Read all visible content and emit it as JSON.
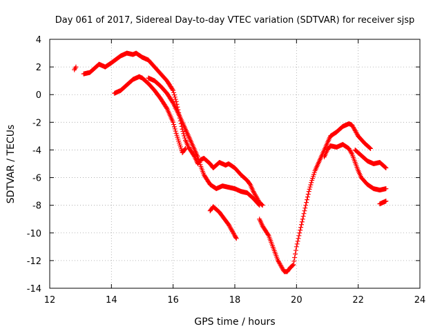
{
  "chart_data": {
    "type": "scatter",
    "title": "Day 061 of 2017, Sidereal Day-to-day VTEC variation (SDTVAR) for receiver sjsp",
    "xlabel": "GPS time / hours",
    "ylabel": "SDTVAR / TECUs",
    "xlim": [
      12,
      24
    ],
    "ylim": [
      -14,
      4
    ],
    "xticks": [
      12,
      14,
      16,
      18,
      20,
      22,
      24
    ],
    "yticks": [
      -14,
      -12,
      -10,
      -8,
      -6,
      -4,
      -2,
      0,
      2,
      4
    ],
    "xtick_labels": [
      "12",
      "14",
      "16",
      "18",
      "20",
      "22",
      "24"
    ],
    "ytick_labels": [
      "-14",
      "-12",
      "-10",
      "-8",
      "-6",
      "-4",
      "-2",
      "0",
      "2",
      "4"
    ],
    "grid": true,
    "marker": "+",
    "series": [
      {
        "name": "arc-1",
        "color": "#ff0000",
        "points": [
          [
            12.8,
            1.8
          ],
          [
            12.85,
            2.0
          ]
        ]
      },
      {
        "name": "arc-2",
        "color": "#ff0000",
        "points": [
          [
            13.1,
            1.5
          ],
          [
            13.3,
            1.6
          ],
          [
            13.5,
            2.0
          ],
          [
            13.6,
            2.2
          ],
          [
            13.8,
            2.0
          ],
          [
            14.0,
            2.3
          ],
          [
            14.3,
            2.8
          ],
          [
            14.5,
            3.0
          ],
          [
            14.7,
            2.9
          ],
          [
            14.8,
            3.0
          ],
          [
            15.0,
            2.7
          ],
          [
            15.2,
            2.5
          ],
          [
            15.4,
            2.0
          ],
          [
            15.6,
            1.5
          ],
          [
            15.8,
            1.0
          ],
          [
            16.0,
            0.3
          ],
          [
            16.1,
            -0.5
          ],
          [
            16.2,
            -1.5
          ],
          [
            16.3,
            -2.5
          ],
          [
            16.4,
            -3.3
          ],
          [
            16.5,
            -3.8
          ],
          [
            16.7,
            -4.5
          ],
          [
            16.8,
            -5.0
          ],
          [
            16.9,
            -4.7
          ],
          [
            17.0,
            -4.6
          ],
          [
            17.2,
            -5.0
          ],
          [
            17.3,
            -5.3
          ],
          [
            17.5,
            -4.9
          ],
          [
            17.7,
            -5.1
          ],
          [
            17.8,
            -5.0
          ],
          [
            18.0,
            -5.3
          ],
          [
            18.2,
            -5.8
          ],
          [
            18.4,
            -6.2
          ],
          [
            18.5,
            -6.5
          ],
          [
            18.6,
            -7.0
          ],
          [
            18.7,
            -7.4
          ],
          [
            18.8,
            -7.8
          ],
          [
            18.9,
            -8.0
          ]
        ]
      },
      {
        "name": "arc-3",
        "color": "#ff0000",
        "points": [
          [
            14.1,
            0.1
          ],
          [
            14.3,
            0.3
          ],
          [
            14.5,
            0.7
          ],
          [
            14.7,
            1.1
          ],
          [
            14.9,
            1.3
          ],
          [
            15.0,
            1.2
          ],
          [
            15.2,
            0.8
          ],
          [
            15.4,
            0.3
          ],
          [
            15.6,
            -0.3
          ],
          [
            15.8,
            -1.0
          ],
          [
            16.0,
            -2.0
          ],
          [
            16.1,
            -2.8
          ],
          [
            16.2,
            -3.5
          ],
          [
            16.3,
            -4.2
          ],
          [
            16.4,
            -3.9
          ]
        ]
      },
      {
        "name": "arc-4",
        "color": "#ff0000",
        "points": [
          [
            15.2,
            1.2
          ],
          [
            15.4,
            1.0
          ],
          [
            15.6,
            0.6
          ],
          [
            15.8,
            0.1
          ],
          [
            16.0,
            -0.6
          ],
          [
            16.2,
            -1.5
          ],
          [
            16.4,
            -2.5
          ],
          [
            16.6,
            -3.5
          ],
          [
            16.8,
            -4.5
          ],
          [
            16.9,
            -5.2
          ],
          [
            17.0,
            -5.8
          ],
          [
            17.2,
            -6.5
          ],
          [
            17.4,
            -6.8
          ],
          [
            17.6,
            -6.6
          ],
          [
            17.8,
            -6.7
          ],
          [
            18.0,
            -6.8
          ],
          [
            18.2,
            -7.0
          ],
          [
            18.4,
            -7.1
          ],
          [
            18.5,
            -7.3
          ],
          [
            18.6,
            -7.5
          ],
          [
            18.8,
            -8.0
          ]
        ]
      },
      {
        "name": "arc-5",
        "color": "#ff0000",
        "points": [
          [
            17.2,
            -8.4
          ],
          [
            17.3,
            -8.1
          ],
          [
            17.5,
            -8.5
          ],
          [
            17.6,
            -8.8
          ],
          [
            17.8,
            -9.4
          ],
          [
            17.9,
            -9.8
          ],
          [
            18.0,
            -10.2
          ],
          [
            18.05,
            -10.4
          ]
        ]
      },
      {
        "name": "arc-6",
        "color": "#ff0000",
        "points": [
          [
            18.8,
            -9.0
          ],
          [
            18.9,
            -9.5
          ],
          [
            19.1,
            -10.2
          ],
          [
            19.2,
            -10.8
          ],
          [
            19.3,
            -11.4
          ],
          [
            19.4,
            -12.0
          ],
          [
            19.5,
            -12.4
          ],
          [
            19.6,
            -12.8
          ],
          [
            19.7,
            -12.8
          ],
          [
            19.8,
            -12.5
          ],
          [
            19.9,
            -12.3
          ],
          [
            20.0,
            -11.0
          ],
          [
            20.1,
            -10.0
          ],
          [
            20.2,
            -9.0
          ],
          [
            20.3,
            -8.0
          ],
          [
            20.4,
            -7.0
          ],
          [
            20.5,
            -6.2
          ],
          [
            20.6,
            -5.5
          ],
          [
            20.7,
            -5.0
          ],
          [
            20.8,
            -4.5
          ],
          [
            20.9,
            -4.0
          ],
          [
            21.0,
            -3.5
          ],
          [
            21.1,
            -3.0
          ],
          [
            21.3,
            -2.7
          ],
          [
            21.5,
            -2.3
          ],
          [
            21.7,
            -2.1
          ],
          [
            21.8,
            -2.2
          ],
          [
            21.9,
            -2.6
          ],
          [
            22.0,
            -3.0
          ],
          [
            22.2,
            -3.5
          ],
          [
            22.4,
            -3.9
          ]
        ]
      },
      {
        "name": "arc-7",
        "color": "#ff0000",
        "points": [
          [
            20.9,
            -4.5
          ],
          [
            21.0,
            -4.0
          ],
          [
            21.1,
            -3.7
          ],
          [
            21.3,
            -3.8
          ],
          [
            21.5,
            -3.6
          ],
          [
            21.7,
            -3.9
          ],
          [
            21.8,
            -4.3
          ],
          [
            21.9,
            -4.9
          ],
          [
            22.0,
            -5.5
          ],
          [
            22.1,
            -6.0
          ],
          [
            22.3,
            -6.5
          ],
          [
            22.5,
            -6.8
          ],
          [
            22.7,
            -6.9
          ],
          [
            22.9,
            -6.8
          ]
        ]
      },
      {
        "name": "arc-8",
        "color": "#ff0000",
        "points": [
          [
            21.9,
            -4.0
          ],
          [
            22.1,
            -4.4
          ],
          [
            22.3,
            -4.8
          ],
          [
            22.5,
            -5.0
          ],
          [
            22.7,
            -4.9
          ],
          [
            22.9,
            -5.3
          ]
        ]
      },
      {
        "name": "arc-9",
        "color": "#ff0000",
        "points": [
          [
            22.7,
            -7.9
          ],
          [
            22.8,
            -7.8
          ],
          [
            22.9,
            -7.7
          ]
        ]
      }
    ]
  }
}
